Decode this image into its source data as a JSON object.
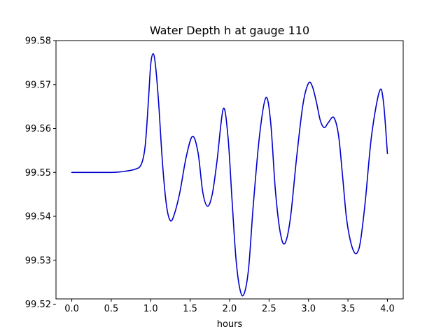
{
  "chart_data": {
    "type": "line",
    "title": "Water Depth h at gauge 110",
    "xlabel": "hours",
    "ylabel": "",
    "xlim": [
      -0.2,
      4.2
    ],
    "ylim": [
      99.5212,
      99.58
    ],
    "x_ticks": [
      0.0,
      0.5,
      1.0,
      1.5,
      2.0,
      2.5,
      3.0,
      3.5,
      4.0
    ],
    "x_tick_labels": [
      "0.0",
      "0.5",
      "1.0",
      "1.5",
      "2.0",
      "2.5",
      "3.0",
      "3.5",
      "4.0"
    ],
    "y_ticks": [
      99.52,
      99.53,
      99.54,
      99.55,
      99.56,
      99.57,
      99.58
    ],
    "y_tick_labels": [
      "99.52",
      "99.53",
      "99.54",
      "99.55",
      "99.56",
      "99.57",
      "99.58"
    ],
    "grid": false,
    "series": [
      {
        "color": "#0000cc",
        "x": [
          0.0,
          0.5,
          0.65,
          0.8,
          0.88,
          0.93,
          0.97,
          1.0,
          1.03,
          1.06,
          1.1,
          1.15,
          1.2,
          1.25,
          1.3,
          1.37,
          1.45,
          1.53,
          1.6,
          1.66,
          1.72,
          1.78,
          1.84,
          1.92,
          1.98,
          2.03,
          2.08,
          2.13,
          2.18,
          2.24,
          2.3,
          2.38,
          2.46,
          2.52,
          2.58,
          2.64,
          2.7,
          2.77,
          2.85,
          2.93,
          3.0,
          3.05,
          3.1,
          3.15,
          3.2,
          3.25,
          3.32,
          3.38,
          3.43,
          3.48,
          3.53,
          3.58,
          3.62,
          3.66,
          3.72,
          3.8,
          3.9,
          3.95,
          4.0
        ],
        "y": [
          99.55,
          99.55,
          99.5502,
          99.5507,
          99.5518,
          99.556,
          99.566,
          99.5745,
          99.577,
          99.5745,
          99.566,
          99.552,
          99.5425,
          99.539,
          99.5405,
          99.5455,
          99.5535,
          99.5582,
          99.5545,
          99.5455,
          99.5423,
          99.545,
          99.5525,
          99.5645,
          99.558,
          99.544,
          99.5305,
          99.5235,
          99.5222,
          99.528,
          99.5425,
          99.5585,
          99.567,
          99.5615,
          99.546,
          99.5365,
          99.5338,
          99.5395,
          99.5535,
          99.5655,
          99.5703,
          99.5695,
          99.566,
          99.5618,
          99.5602,
          99.5613,
          99.5625,
          99.5585,
          99.5495,
          99.5398,
          99.5345,
          99.5318,
          99.5318,
          99.5345,
          99.5435,
          99.5585,
          99.5685,
          99.566,
          99.5543
        ]
      }
    ]
  }
}
